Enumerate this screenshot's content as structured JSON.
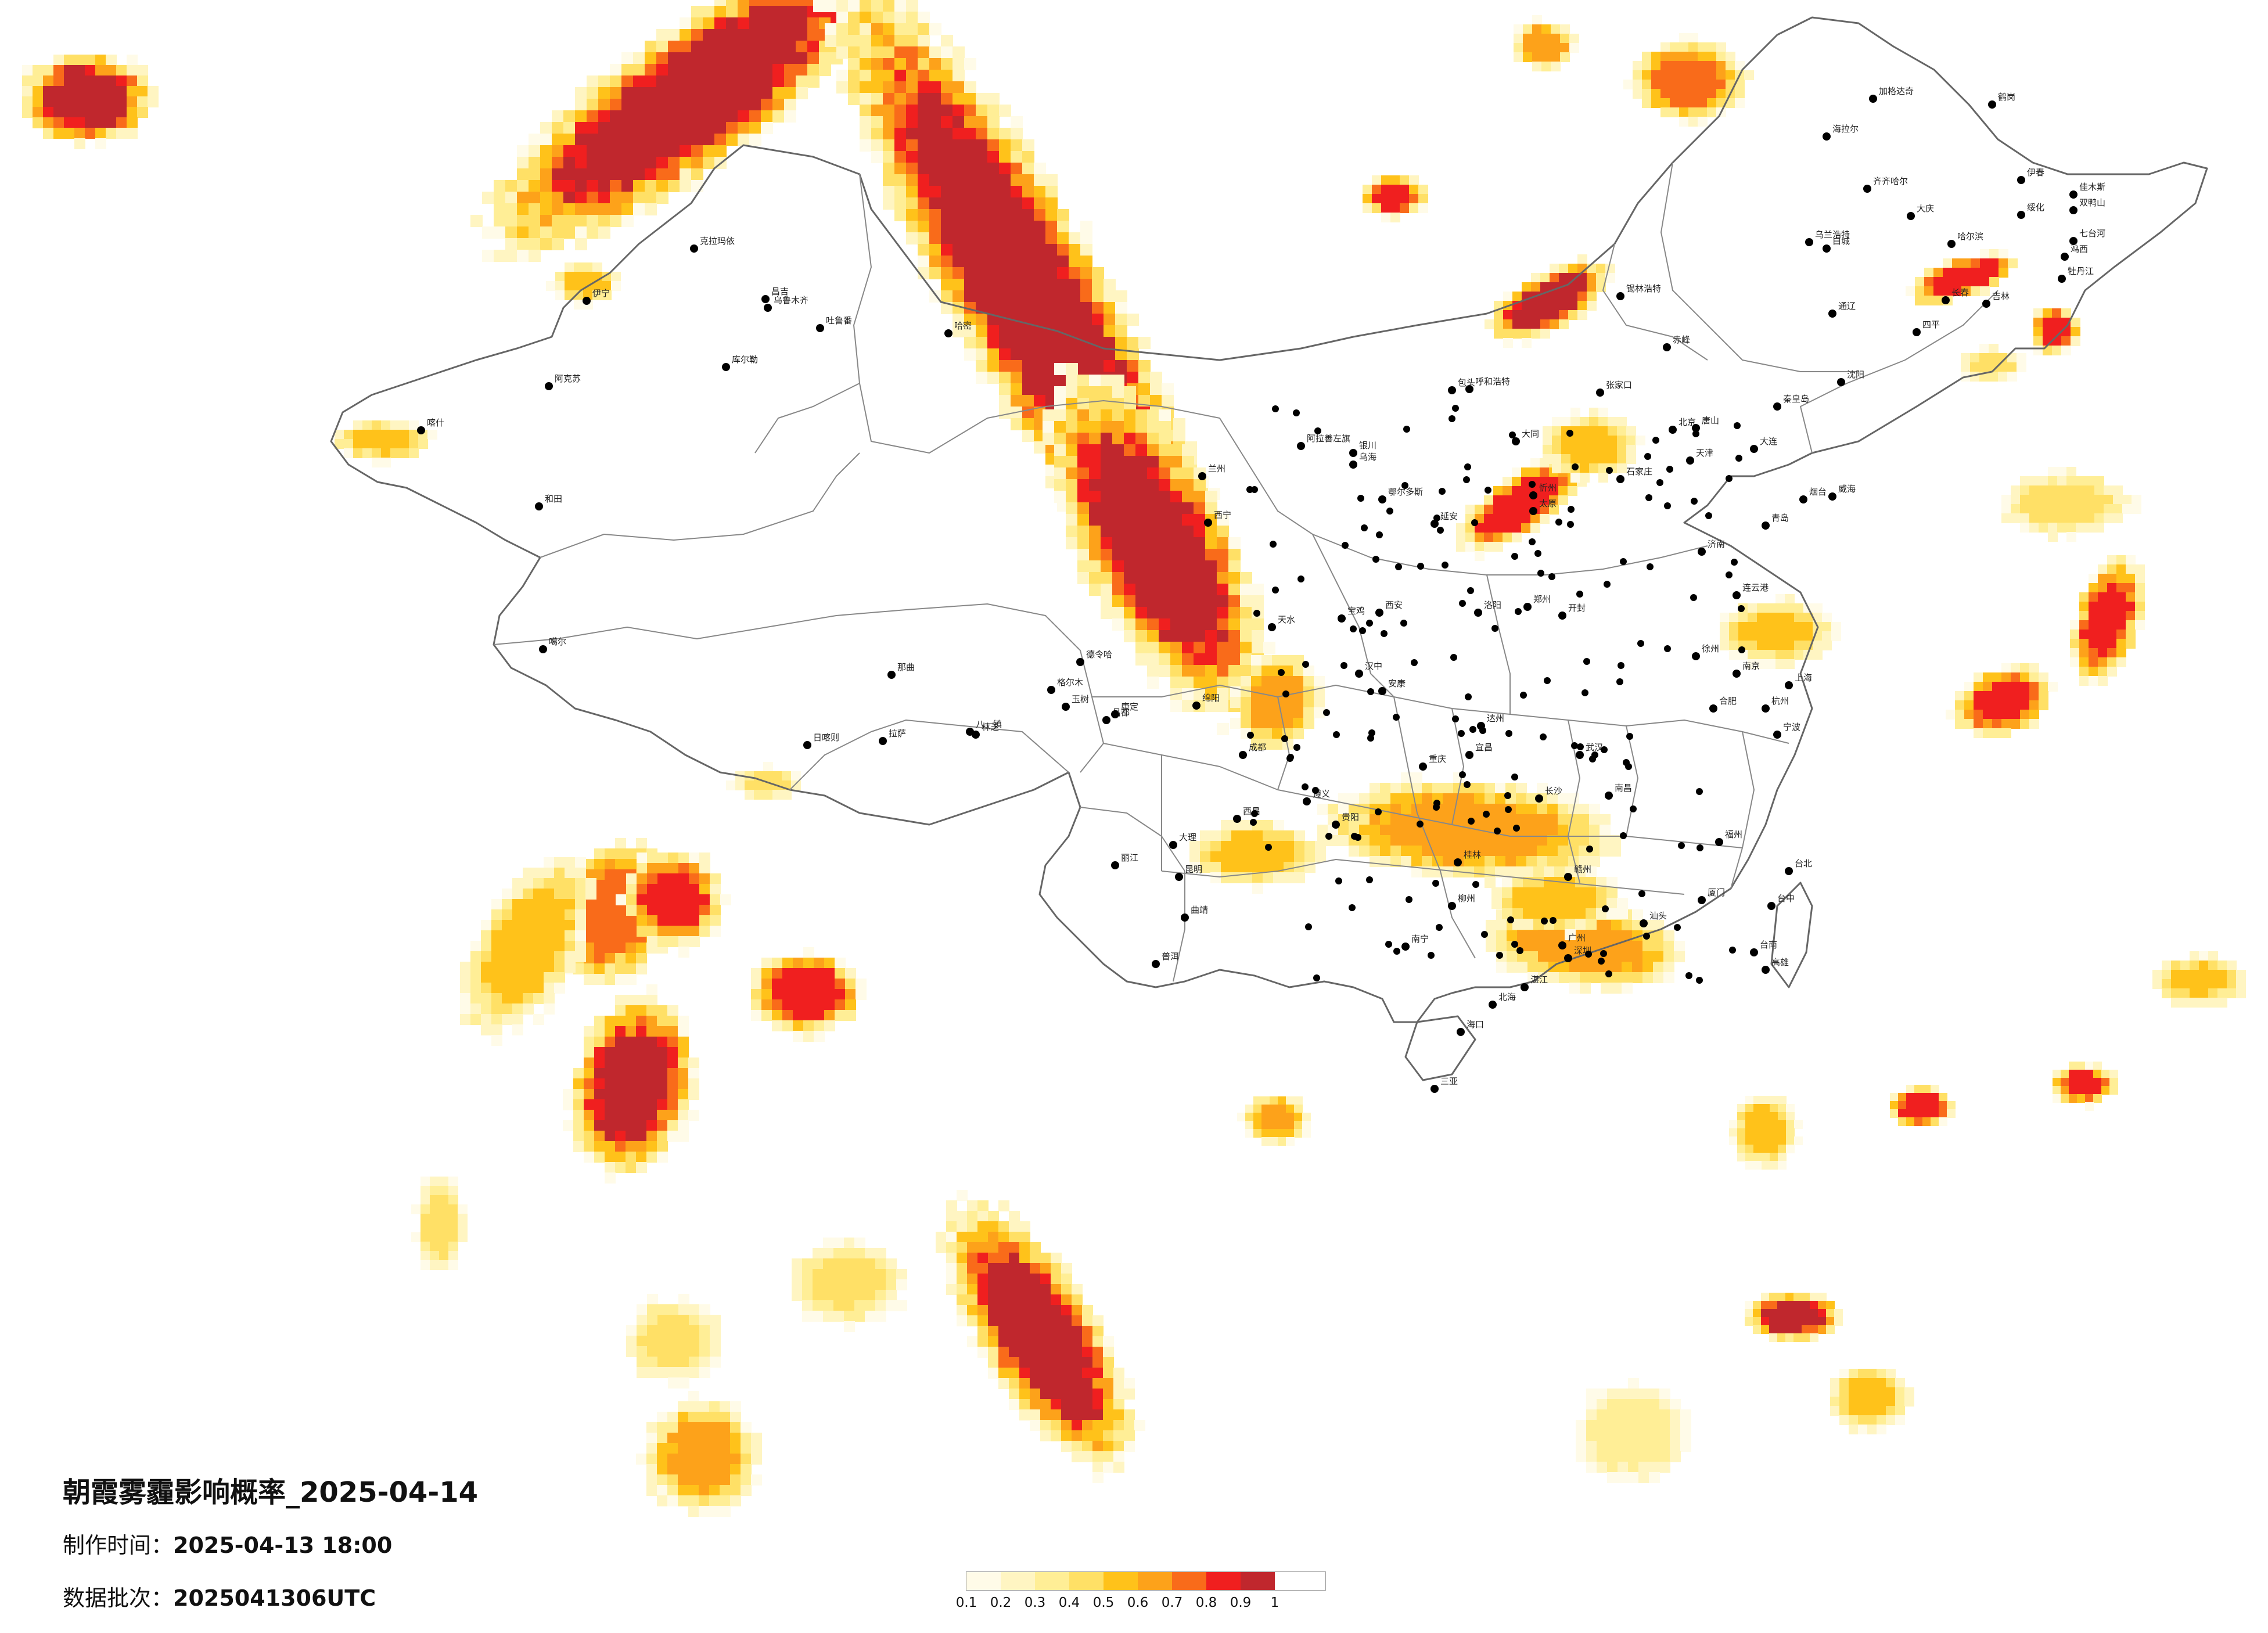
{
  "title": "朝霞雾霾影响概率_2025-04-14",
  "made_time": {
    "label": "制作时间：",
    "value": "2025-04-13 18:00"
  },
  "data_batch": {
    "label": "数据批次：",
    "value": "2025041306UTC"
  },
  "legend": {
    "colors": [
      "#fffbe8",
      "#fff5c2",
      "#ffee96",
      "#ffe066",
      "#ffc21a",
      "#fda21a",
      "#f96b1a",
      "#f01f1f",
      "#c0272d"
    ],
    "ticks": [
      "0.1",
      "0.2",
      "0.3",
      "0.4",
      "0.5",
      "0.6",
      "0.7",
      "0.8",
      "0.9",
      "1"
    ]
  },
  "cities": [
    {
      "name": "克拉玛依"
    },
    {
      "name": "伊宁"
    },
    {
      "name": "昌吉"
    },
    {
      "name": "乌鲁木齐"
    },
    {
      "name": "吐鲁番"
    },
    {
      "name": "哈密"
    },
    {
      "name": "库尔勒"
    },
    {
      "name": "阿克苏"
    },
    {
      "name": "喀什"
    },
    {
      "name": "和田"
    },
    {
      "name": "噶尔"
    },
    {
      "name": "那曲"
    },
    {
      "name": "日喀则"
    },
    {
      "name": "拉萨"
    },
    {
      "name": "林芝"
    },
    {
      "name": "八一镇"
    },
    {
      "name": "昌都"
    },
    {
      "name": "玉树"
    },
    {
      "name": "格尔木"
    },
    {
      "name": "德令哈"
    },
    {
      "name": "西宁"
    },
    {
      "name": "兰州"
    },
    {
      "name": "银川"
    },
    {
      "name": "呼和浩特"
    },
    {
      "name": "包头"
    },
    {
      "name": "鄂尔多斯"
    },
    {
      "name": "乌海"
    },
    {
      "name": "锡林浩特"
    },
    {
      "name": "海拉尔"
    },
    {
      "name": "加格达奇"
    },
    {
      "name": "齐齐哈尔"
    },
    {
      "name": "大庆"
    },
    {
      "name": "哈尔滨"
    },
    {
      "name": "绥化"
    },
    {
      "name": "伊春"
    },
    {
      "name": "鹤岗"
    },
    {
      "name": "佳木斯"
    },
    {
      "name": "双鸭山"
    },
    {
      "name": "七台河"
    },
    {
      "name": "鸡西"
    },
    {
      "name": "牡丹江"
    },
    {
      "name": "吉林"
    },
    {
      "name": "长春"
    },
    {
      "name": "四平"
    },
    {
      "name": "通辽"
    },
    {
      "name": "乌兰浩特"
    },
    {
      "name": "白城"
    },
    {
      "name": "沈阳"
    },
    {
      "name": "大连"
    },
    {
      "name": "赤峰"
    },
    {
      "name": "张家口"
    },
    {
      "name": "北京"
    },
    {
      "name": "天津"
    },
    {
      "name": "唐山"
    },
    {
      "name": "秦皇岛"
    },
    {
      "name": "石家庄"
    },
    {
      "name": "太原"
    },
    {
      "name": "大同"
    },
    {
      "name": "忻州"
    },
    {
      "name": "济南"
    },
    {
      "name": "青岛"
    },
    {
      "name": "烟台"
    },
    {
      "name": "威海"
    },
    {
      "name": "郑州"
    },
    {
      "name": "洛阳"
    },
    {
      "name": "开封"
    },
    {
      "name": "西安"
    },
    {
      "name": "延安"
    },
    {
      "name": "宝鸡"
    },
    {
      "name": "天水"
    },
    {
      "name": "汉中"
    },
    {
      "name": "安康"
    },
    {
      "name": "成都"
    },
    {
      "name": "绵阳"
    },
    {
      "name": "重庆"
    },
    {
      "name": "达州"
    },
    {
      "name": "遵义"
    },
    {
      "name": "贵阳"
    },
    {
      "name": "昆明"
    },
    {
      "name": "大理"
    },
    {
      "name": "丽江"
    },
    {
      "name": "曲靖"
    },
    {
      "name": "普洱"
    },
    {
      "name": "南宁"
    },
    {
      "name": "柳州"
    },
    {
      "name": "桂林"
    },
    {
      "name": "北海"
    },
    {
      "name": "海口"
    },
    {
      "name": "三亚"
    },
    {
      "name": "广州"
    },
    {
      "name": "深圳"
    },
    {
      "name": "湛江"
    },
    {
      "name": "汕头"
    },
    {
      "name": "长沙"
    },
    {
      "name": "武汉"
    },
    {
      "name": "宜昌"
    },
    {
      "name": "南昌"
    },
    {
      "name": "赣州"
    },
    {
      "name": "福州"
    },
    {
      "name": "厦门"
    },
    {
      "name": "合肥"
    },
    {
      "name": "南京"
    },
    {
      "name": "上海"
    },
    {
      "name": "杭州"
    },
    {
      "name": "宁波"
    },
    {
      "name": "徐州"
    },
    {
      "name": "连云港"
    },
    {
      "name": "台北"
    },
    {
      "name": "台中"
    },
    {
      "name": "台南"
    },
    {
      "name": "高雄"
    },
    {
      "name": "西昌"
    },
    {
      "name": "康定"
    },
    {
      "name": "阿拉善左旗"
    }
  ]
}
